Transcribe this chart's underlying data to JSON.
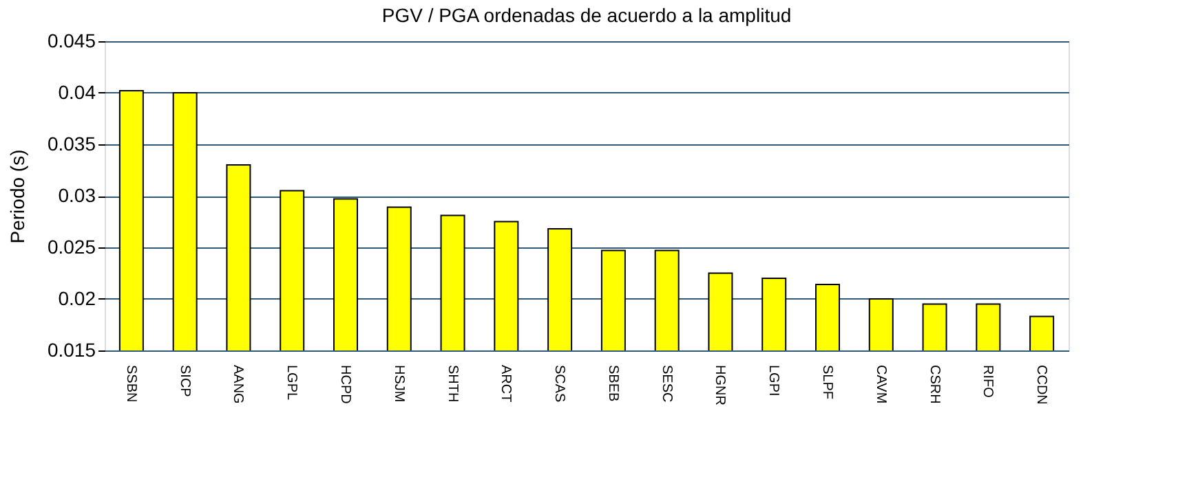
{
  "chart_data": {
    "type": "bar",
    "title": "PGV / PGA ordenadas de acuerdo a la amplitud",
    "ylabel": "Periodo (s)",
    "categories": [
      "SSBN",
      "SICP",
      "AANG",
      "LGPL",
      "HCPD",
      "HSJM",
      "SHTH",
      "ARCT",
      "SCAS",
      "SBEB",
      "SESC",
      "HGNR",
      "LGPI",
      "SLPF",
      "CAVM",
      "CSRH",
      "RIFO",
      "CCDN"
    ],
    "values": [
      0.0402,
      0.04,
      0.033,
      0.0305,
      0.0297,
      0.0289,
      0.0281,
      0.0275,
      0.0268,
      0.0247,
      0.0247,
      0.0225,
      0.022,
      0.0214,
      0.02,
      0.0195,
      0.0195,
      0.0183
    ],
    "color": "#ffff00",
    "ylim": [
      0.015,
      0.045
    ],
    "yticks": [
      0.015,
      0.02,
      0.025,
      0.03,
      0.035,
      0.04,
      0.045
    ],
    "grid": "y"
  }
}
